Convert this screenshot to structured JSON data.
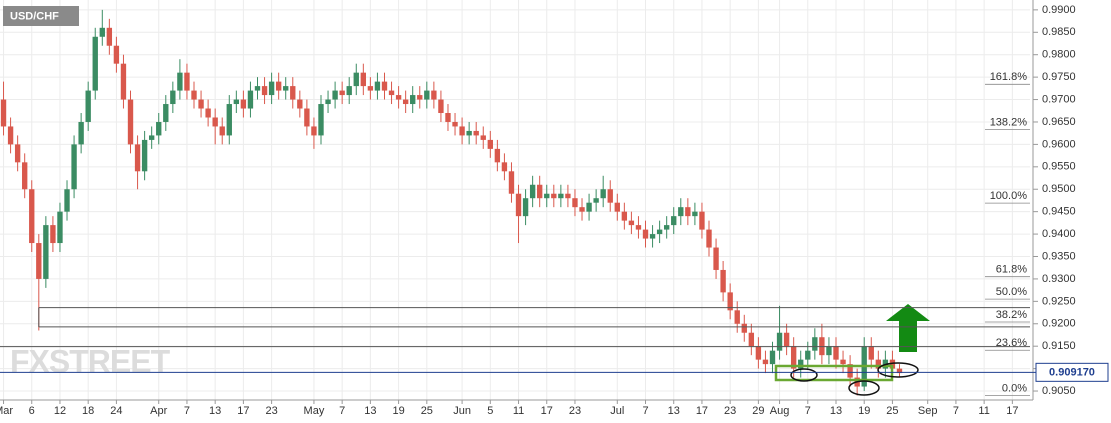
{
  "chart_data": {
    "type": "candlestick",
    "title": "USD/CHF",
    "watermark": "FXSTREET",
    "up_color": "#3b8c63",
    "down_color": "#d9584c",
    "grid": true,
    "categories": [
      "Mar",
      null,
      null,
      null,
      "6",
      null,
      null,
      null,
      "12",
      null,
      null,
      null,
      "18",
      null,
      null,
      null,
      "24",
      null,
      null,
      null,
      null,
      null,
      "Apr",
      null,
      null,
      null,
      "7",
      null,
      null,
      null,
      "13",
      null,
      null,
      null,
      "17",
      null,
      null,
      null,
      "23",
      null,
      null,
      null,
      null,
      null,
      "May",
      null,
      null,
      null,
      "7",
      null,
      null,
      null,
      "13",
      null,
      null,
      null,
      "19",
      null,
      null,
      null,
      "25",
      null,
      null,
      null,
      null,
      "Jun",
      null,
      null,
      null,
      "5",
      null,
      null,
      null,
      "11",
      null,
      null,
      null,
      "17",
      null,
      null,
      null,
      "23",
      null,
      null,
      null,
      null,
      null,
      "Jul",
      null,
      null,
      null,
      "7",
      null,
      null,
      null,
      "13",
      null,
      null,
      null,
      "17",
      null,
      null,
      null,
      "23",
      null,
      null,
      null,
      "29",
      null,
      null,
      "Aug",
      null,
      null,
      null,
      "7",
      null,
      null,
      null,
      "13",
      null,
      null,
      null,
      "19",
      null,
      null,
      null,
      "25",
      null,
      null,
      null,
      null,
      "Sep",
      null,
      null,
      null,
      "7",
      null,
      null,
      null,
      "11",
      null,
      null,
      null,
      "17",
      null,
      null
    ],
    "open": [
      0.97,
      0.964,
      0.96,
      0.956,
      0.95,
      0.938,
      0.93,
      0.942,
      0.938,
      0.945,
      0.95,
      0.96,
      0.965,
      0.972,
      0.984,
      0.986,
      0.982,
      0.978,
      0.97,
      0.96,
      0.954,
      0.961,
      0.962,
      0.965,
      0.969,
      0.972,
      0.976,
      0.972,
      0.97,
      0.968,
      0.966,
      0.964,
      0.962,
      0.969,
      0.97,
      0.968,
      0.972,
      0.973,
      0.971,
      0.974,
      0.972,
      0.973,
      0.97,
      0.968,
      0.964,
      0.962,
      0.969,
      0.97,
      0.972,
      0.971,
      0.973,
      0.976,
      0.973,
      0.972,
      0.974,
      0.972,
      0.971,
      0.97,
      0.969,
      0.971,
      0.97,
      0.972,
      0.97,
      0.967,
      0.965,
      0.964,
      0.962,
      0.963,
      0.962,
      0.961,
      0.959,
      0.956,
      0.954,
      0.949,
      0.944,
      0.948,
      0.951,
      0.948,
      0.949,
      0.948,
      0.949,
      0.948,
      0.946,
      0.945,
      0.947,
      0.948,
      0.95,
      0.947,
      0.945,
      0.943,
      0.942,
      0.941,
      0.939,
      0.94,
      0.941,
      0.942,
      0.944,
      0.946,
      0.944,
      0.945,
      0.941,
      0.937,
      0.932,
      0.927,
      0.923,
      0.92,
      0.918,
      0.915,
      0.912,
      0.911,
      0.914,
      0.918,
      0.915,
      0.91,
      0.912,
      0.914,
      0.917,
      0.913,
      0.915,
      0.912,
      0.911,
      0.908,
      0.906,
      0.915,
      0.912,
      0.91,
      0.912,
      0.91,
      null,
      null,
      null,
      null,
      null,
      null,
      null,
      null,
      null,
      null,
      null,
      null,
      null,
      null,
      null,
      null,
      null,
      null
    ],
    "high": [
      0.974,
      0.966,
      0.962,
      0.958,
      0.952,
      0.94,
      0.944,
      0.944,
      0.947,
      0.952,
      0.962,
      0.967,
      0.974,
      0.986,
      0.99,
      0.988,
      0.984,
      0.98,
      0.972,
      0.962,
      0.963,
      0.964,
      0.967,
      0.971,
      0.974,
      0.979,
      0.978,
      0.974,
      0.972,
      0.97,
      0.968,
      0.966,
      0.971,
      0.972,
      0.972,
      0.974,
      0.975,
      0.975,
      0.976,
      0.976,
      0.975,
      0.975,
      0.972,
      0.97,
      0.966,
      0.971,
      0.972,
      0.974,
      0.974,
      0.975,
      0.978,
      0.978,
      0.975,
      0.976,
      0.976,
      0.974,
      0.973,
      0.972,
      0.973,
      0.973,
      0.974,
      0.974,
      0.972,
      0.969,
      0.967,
      0.966,
      0.965,
      0.965,
      0.964,
      0.963,
      0.961,
      0.958,
      0.956,
      0.951,
      0.95,
      0.953,
      0.953,
      0.951,
      0.951,
      0.951,
      0.951,
      0.95,
      0.948,
      0.949,
      0.95,
      0.953,
      0.952,
      0.949,
      0.947,
      0.945,
      0.944,
      0.943,
      0.942,
      0.943,
      0.944,
      0.946,
      0.948,
      0.948,
      0.947,
      0.947,
      0.943,
      0.939,
      0.934,
      0.929,
      0.925,
      0.922,
      0.92,
      0.917,
      0.914,
      0.916,
      0.924,
      0.92,
      0.917,
      0.914,
      0.916,
      0.919,
      0.92,
      0.917,
      0.917,
      0.914,
      0.913,
      0.91,
      0.917,
      0.917,
      0.914,
      0.914,
      0.914,
      0.911,
      null,
      null,
      null,
      null,
      null,
      null,
      null,
      null,
      null,
      null,
      null,
      null,
      null,
      null,
      null,
      null,
      null,
      null
    ],
    "low": [
      0.962,
      0.958,
      0.954,
      0.948,
      0.936,
      0.9185,
      0.928,
      0.936,
      0.936,
      0.943,
      0.948,
      0.958,
      0.963,
      0.97,
      0.982,
      0.98,
      0.976,
      0.968,
      0.958,
      0.95,
      0.952,
      0.959,
      0.96,
      0.963,
      0.967,
      0.97,
      0.97,
      0.968,
      0.966,
      0.964,
      0.96,
      0.96,
      0.96,
      0.967,
      0.966,
      0.966,
      0.97,
      0.969,
      0.969,
      0.97,
      0.97,
      0.968,
      0.966,
      0.962,
      0.959,
      0.96,
      0.967,
      0.968,
      0.969,
      0.969,
      0.971,
      0.971,
      0.97,
      0.97,
      0.97,
      0.969,
      0.968,
      0.967,
      0.967,
      0.968,
      0.968,
      0.968,
      0.965,
      0.963,
      0.962,
      0.96,
      0.96,
      0.96,
      0.959,
      0.957,
      0.954,
      0.952,
      0.947,
      0.938,
      0.942,
      0.946,
      0.946,
      0.946,
      0.946,
      0.946,
      0.946,
      0.944,
      0.943,
      0.943,
      0.945,
      0.946,
      0.945,
      0.943,
      0.941,
      0.94,
      0.939,
      0.937,
      0.937,
      0.938,
      0.939,
      0.94,
      0.942,
      0.942,
      0.942,
      0.939,
      0.935,
      0.93,
      0.925,
      0.921,
      0.918,
      0.916,
      0.913,
      0.91,
      0.909,
      0.909,
      0.912,
      0.913,
      0.908,
      0.908,
      0.91,
      0.912,
      0.911,
      0.911,
      0.91,
      0.909,
      0.906,
      0.904,
      0.905,
      0.91,
      0.908,
      0.908,
      0.908,
      0.908,
      null,
      null,
      null,
      null,
      null,
      null,
      null,
      null,
      null,
      null,
      null,
      null,
      null,
      null,
      null,
      null,
      null,
      null
    ],
    "close": [
      0.964,
      0.96,
      0.956,
      0.95,
      0.938,
      0.93,
      0.942,
      0.938,
      0.945,
      0.95,
      0.96,
      0.965,
      0.972,
      0.984,
      0.986,
      0.982,
      0.978,
      0.97,
      0.96,
      0.954,
      0.961,
      0.962,
      0.965,
      0.969,
      0.972,
      0.976,
      0.972,
      0.97,
      0.968,
      0.966,
      0.964,
      0.962,
      0.969,
      0.97,
      0.968,
      0.972,
      0.973,
      0.971,
      0.974,
      0.972,
      0.973,
      0.97,
      0.968,
      0.964,
      0.962,
      0.969,
      0.97,
      0.972,
      0.971,
      0.973,
      0.976,
      0.973,
      0.972,
      0.974,
      0.972,
      0.971,
      0.97,
      0.969,
      0.971,
      0.97,
      0.972,
      0.97,
      0.967,
      0.965,
      0.964,
      0.962,
      0.963,
      0.962,
      0.961,
      0.959,
      0.956,
      0.954,
      0.949,
      0.944,
      0.948,
      0.951,
      0.948,
      0.949,
      0.948,
      0.949,
      0.948,
      0.946,
      0.945,
      0.947,
      0.948,
      0.95,
      0.947,
      0.945,
      0.943,
      0.942,
      0.941,
      0.939,
      0.94,
      0.941,
      0.942,
      0.944,
      0.946,
      0.944,
      0.945,
      0.941,
      0.937,
      0.932,
      0.927,
      0.923,
      0.92,
      0.918,
      0.915,
      0.912,
      0.911,
      0.914,
      0.918,
      0.915,
      0.91,
      0.912,
      0.914,
      0.917,
      0.913,
      0.915,
      0.912,
      0.911,
      0.908,
      0.906,
      0.915,
      0.912,
      0.91,
      0.912,
      0.91,
      0.909,
      null,
      null,
      null,
      null,
      null,
      null,
      null,
      null,
      null,
      null,
      null,
      null,
      null,
      null,
      null,
      null,
      null,
      null
    ],
    "ylim": [
      0.903,
      0.9922
    ],
    "yticks": [
      {
        "value": 0.99,
        "label": "0.9900"
      },
      {
        "value": 0.985,
        "label": "0.9850"
      },
      {
        "value": 0.98,
        "label": "0.9800"
      },
      {
        "value": 0.975,
        "label": "0.9750"
      },
      {
        "value": 0.97,
        "label": "0.9700"
      },
      {
        "value": 0.965,
        "label": "0.9650"
      },
      {
        "value": 0.96,
        "label": "0.9600"
      },
      {
        "value": 0.955,
        "label": "0.9550"
      },
      {
        "value": 0.95,
        "label": "0.9500"
      },
      {
        "value": 0.945,
        "label": "0.9450"
      },
      {
        "value": 0.94,
        "label": "0.9400"
      },
      {
        "value": 0.935,
        "label": "0.9350"
      },
      {
        "value": 0.93,
        "label": "0.9300"
      },
      {
        "value": 0.925,
        "label": "0.9250"
      },
      {
        "value": 0.92,
        "label": "0.9200"
      },
      {
        "value": 0.915,
        "label": "0.9150"
      },
      {
        "value": 0.91,
        "label": "0.9100"
      },
      {
        "value": 0.905,
        "label": "0.9050"
      }
    ],
    "fib_levels": [
      {
        "value": 0.9734,
        "label": "161.8%"
      },
      {
        "value": 0.9633,
        "label": "138.2%"
      },
      {
        "value": 0.9469,
        "label": "100.0%"
      },
      {
        "value": 0.9305,
        "label": "61.8%"
      },
      {
        "value": 0.9255,
        "label": "50.0%"
      },
      {
        "value": 0.9204,
        "label": "38.2%"
      },
      {
        "value": 0.9141,
        "label": "23.6%"
      },
      {
        "value": 0.904,
        "label": "0.0%"
      }
    ],
    "box": [
      0.9193,
      0.9236
    ],
    "support": 0.9149,
    "current_price": {
      "value": 0.90917,
      "label": "0.909170"
    }
  }
}
